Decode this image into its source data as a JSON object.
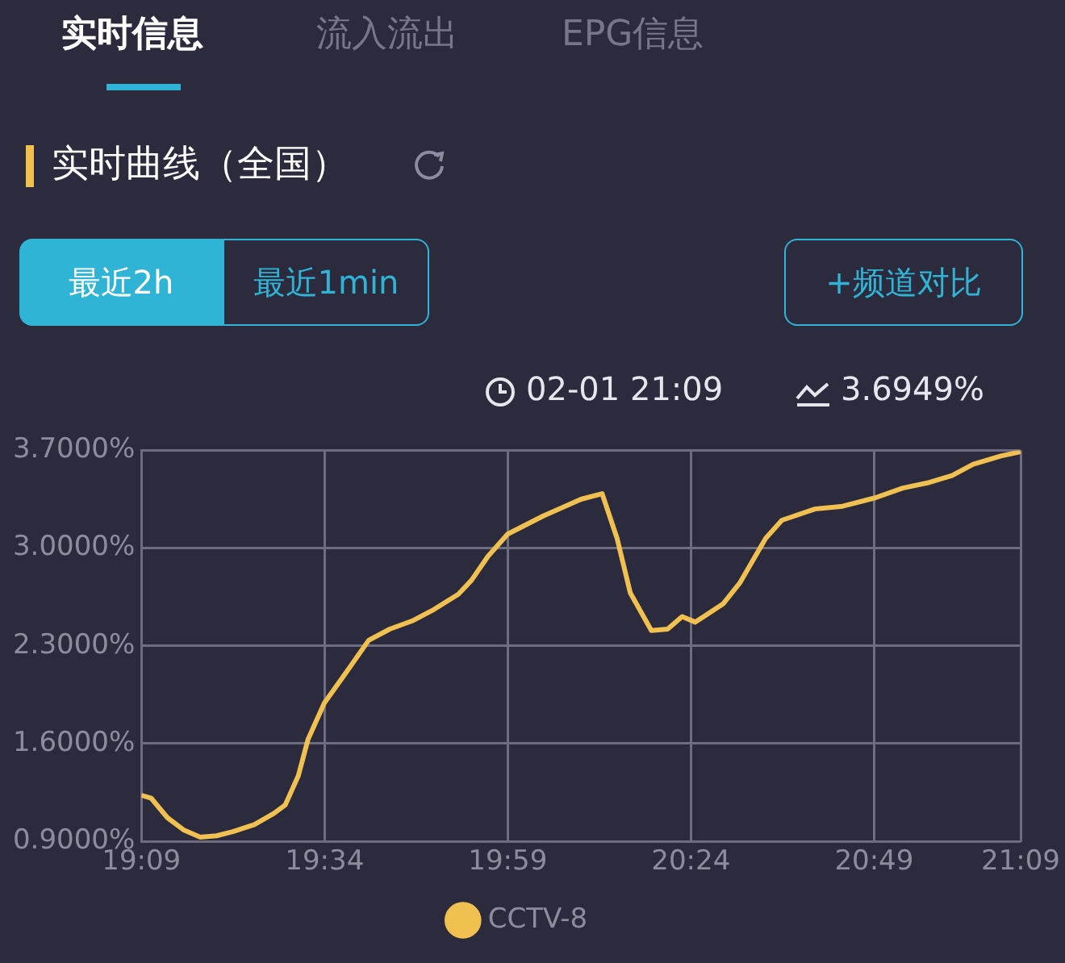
{
  "chart_data": {
    "type": "line",
    "title": "实时曲线（全国）",
    "annotations": [
      "实时信息",
      "流入流出",
      "EPG信息",
      "最近2h",
      "最近1min",
      "+频道对比",
      "02-01 21:09",
      "3.6949%"
    ],
    "x": [
      19.15,
      19.172,
      19.209,
      19.247,
      19.284,
      19.321,
      19.358,
      19.407,
      19.451,
      19.477,
      19.507,
      19.529,
      19.566,
      19.618,
      19.667,
      19.715,
      19.767,
      19.815,
      19.871,
      19.901,
      19.938,
      19.983,
      20.064,
      20.15,
      20.198,
      20.232,
      20.262,
      20.31,
      20.347,
      20.38,
      20.41,
      20.473,
      20.511,
      20.57,
      20.607,
      20.682,
      20.745,
      20.819,
      20.882,
      20.942,
      20.994,
      21.042,
      21.105,
      21.15
    ],
    "series": [
      {
        "name": "CCTV-8",
        "color": "#f0c050",
        "values": [
          1.23,
          1.21,
          1.07,
          0.98,
          0.93,
          0.94,
          0.97,
          1.02,
          1.1,
          1.16,
          1.37,
          1.63,
          1.89,
          2.12,
          2.34,
          2.42,
          2.48,
          2.56,
          2.67,
          2.77,
          2.94,
          3.1,
          3.23,
          3.35,
          3.39,
          3.07,
          2.68,
          2.41,
          2.42,
          2.51,
          2.47,
          2.6,
          2.75,
          3.07,
          3.2,
          3.28,
          3.3,
          3.36,
          3.43,
          3.47,
          3.52,
          3.6,
          3.66,
          3.69
        ]
      }
    ],
    "xlim": [
      19.15,
      21.15
    ],
    "xticks": [
      {
        "value": 19.15,
        "label": "19:09"
      },
      {
        "value": 19.5667,
        "label": "19:34"
      },
      {
        "value": 19.9833,
        "label": "19:59"
      },
      {
        "value": 20.4,
        "label": "20:24"
      },
      {
        "value": 20.8167,
        "label": "20:49"
      },
      {
        "value": 21.15,
        "label": "21:09"
      }
    ],
    "ylim": [
      0.9,
      3.7
    ],
    "yticks": [
      {
        "value": 0.9,
        "label": "0.9000%"
      },
      {
        "value": 1.6,
        "label": "1.6000%"
      },
      {
        "value": 2.3,
        "label": "2.3000%"
      },
      {
        "value": 3.0,
        "label": "3.0000%"
      },
      {
        "value": 3.7,
        "label": "3.7000%"
      }
    ],
    "grid": true,
    "legend": "bottom",
    "marker": "none",
    "line_style": "solid"
  }
}
